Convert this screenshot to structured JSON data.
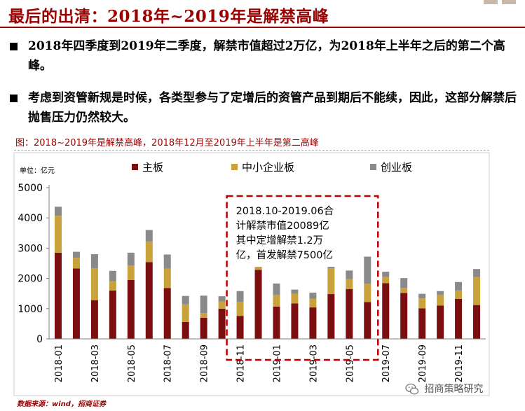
{
  "title": "最后的出清：2018年~2019年是解禁高峰",
  "bullets": [
    "2018年四季度到2019年二季度，解禁市值超过2万亿，为2018年上半年之后的第二个高峰。",
    "考虑到资管新规是时候，各类型参与了定增后的资管产品到期后不能续，因此，这部分解禁后抛售压力仍然较大。"
  ],
  "figure_caption": "图：2018~2019年是解禁高峰，2018年12月至2019年上半年是第二高峰",
  "source": "数据来源：wind，招商证券",
  "watermark": "招商策略研究",
  "colors": {
    "title": "#9b0000",
    "main_board": "#7b0f0f",
    "sme_board": "#c9a23c",
    "growth_board": "#8a8a8a",
    "annotation_border": "#c00000"
  },
  "chart_data": {
    "type": "bar",
    "stacked": true,
    "unit_label": "单位：亿元",
    "categories": [
      "2018-01",
      "2018-02",
      "2018-03",
      "2018-04",
      "2018-05",
      "2018-06",
      "2018-07",
      "2018-08",
      "2018-09",
      "2018-10",
      "2018-11",
      "2018-12",
      "2019-01",
      "2019-02",
      "2019-03",
      "2019-04",
      "2019-05",
      "2019-06",
      "2019-07",
      "2019-08",
      "2019-09",
      "2019-10",
      "2019-11",
      "2019-12"
    ],
    "tick_labels": [
      "2018-01",
      "2018-03",
      "2018-05",
      "2018-07",
      "2018-09",
      "2018-11",
      "2019-01",
      "2019-03",
      "2019-05",
      "2019-07",
      "2019-09",
      "2019-11"
    ],
    "ylim": [
      0,
      5000
    ],
    "yticks": [
      0,
      1000,
      2000,
      3000,
      4000,
      5000
    ],
    "grid": false,
    "legend_position": "top",
    "series": [
      {
        "name": "主板",
        "color": "#7b0f0f",
        "values": [
          2850,
          2330,
          1280,
          1600,
          1950,
          2540,
          1680,
          560,
          700,
          1000,
          760,
          2280,
          1070,
          1170,
          1040,
          1480,
          1650,
          1220,
          1840,
          1520,
          1010,
          1100,
          1320,
          1120
        ]
      },
      {
        "name": "中小企业板",
        "color": "#c9a23c",
        "values": [
          1220,
          350,
          1050,
          310,
          480,
          680,
          640,
          580,
          150,
          240,
          460,
          1130,
          390,
          320,
          290,
          860,
          330,
          600,
          210,
          170,
          330,
          360,
          280,
          920
        ]
      },
      {
        "name": "创业板",
        "color": "#8a8a8a",
        "values": [
          300,
          200,
          470,
          340,
          420,
          380,
          470,
          280,
          580,
          170,
          360,
          900,
          370,
          140,
          200,
          420,
          280,
          900,
          170,
          320,
          150,
          120,
          280,
          270
        ]
      }
    ],
    "annotation": {
      "lines": [
        "2018.10-2019.06合",
        "计解禁市值20089亿",
        "其中定增解禁1.2万",
        "亿，首发解禁7500亿"
      ],
      "from": "2018-11",
      "to": "2019-06"
    }
  }
}
